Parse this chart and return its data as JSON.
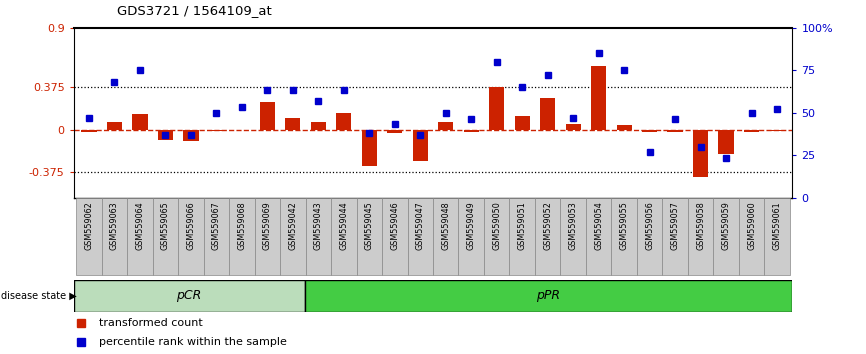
{
  "title": "GDS3721 / 1564109_at",
  "samples": [
    "GSM559062",
    "GSM559063",
    "GSM559064",
    "GSM559065",
    "GSM559066",
    "GSM559067",
    "GSM559068",
    "GSM559069",
    "GSM559042",
    "GSM559043",
    "GSM559044",
    "GSM559045",
    "GSM559046",
    "GSM559047",
    "GSM559048",
    "GSM559049",
    "GSM559050",
    "GSM559051",
    "GSM559052",
    "GSM559053",
    "GSM559054",
    "GSM559055",
    "GSM559056",
    "GSM559057",
    "GSM559058",
    "GSM559059",
    "GSM559060",
    "GSM559061"
  ],
  "transformed_count": [
    -0.02,
    0.07,
    0.14,
    -0.09,
    -0.1,
    -0.01,
    0.0,
    0.24,
    0.1,
    0.07,
    0.15,
    -0.32,
    -0.03,
    -0.28,
    0.07,
    -0.02,
    0.38,
    0.12,
    0.28,
    0.05,
    0.56,
    0.04,
    -0.02,
    -0.02,
    -0.42,
    -0.22,
    -0.02,
    -0.01
  ],
  "percentile_rank": [
    47,
    68,
    75,
    37,
    37,
    50,
    53,
    63,
    63,
    57,
    63,
    38,
    43,
    37,
    50,
    46,
    80,
    65,
    72,
    47,
    85,
    75,
    27,
    46,
    30,
    23,
    50,
    52
  ],
  "pCR_count": 9,
  "pPR_count": 19,
  "ylim_left": [
    -0.6,
    0.9
  ],
  "ylim_right": [
    0,
    100
  ],
  "left_yticks": [
    -0.375,
    0,
    0.375,
    0.9
  ],
  "left_yticklabels": [
    "-0.375",
    "0",
    "0.375",
    "0.9"
  ],
  "right_yticks": [
    0,
    25,
    50,
    75,
    100
  ],
  "right_yticklabels": [
    "0",
    "25",
    "50",
    "75",
    "100%"
  ],
  "hline_dotted": [
    0.375,
    -0.375
  ],
  "bar_color": "#cc2200",
  "dot_color": "#0000cc",
  "zero_line_color": "#cc2200",
  "pCR_color": "#bbddbb",
  "pPR_color": "#44cc44",
  "tick_bg_color": "#cccccc",
  "tick_edge_color": "#888888",
  "legend_bar_label": "transformed count",
  "legend_dot_label": "percentile rank within the sample"
}
